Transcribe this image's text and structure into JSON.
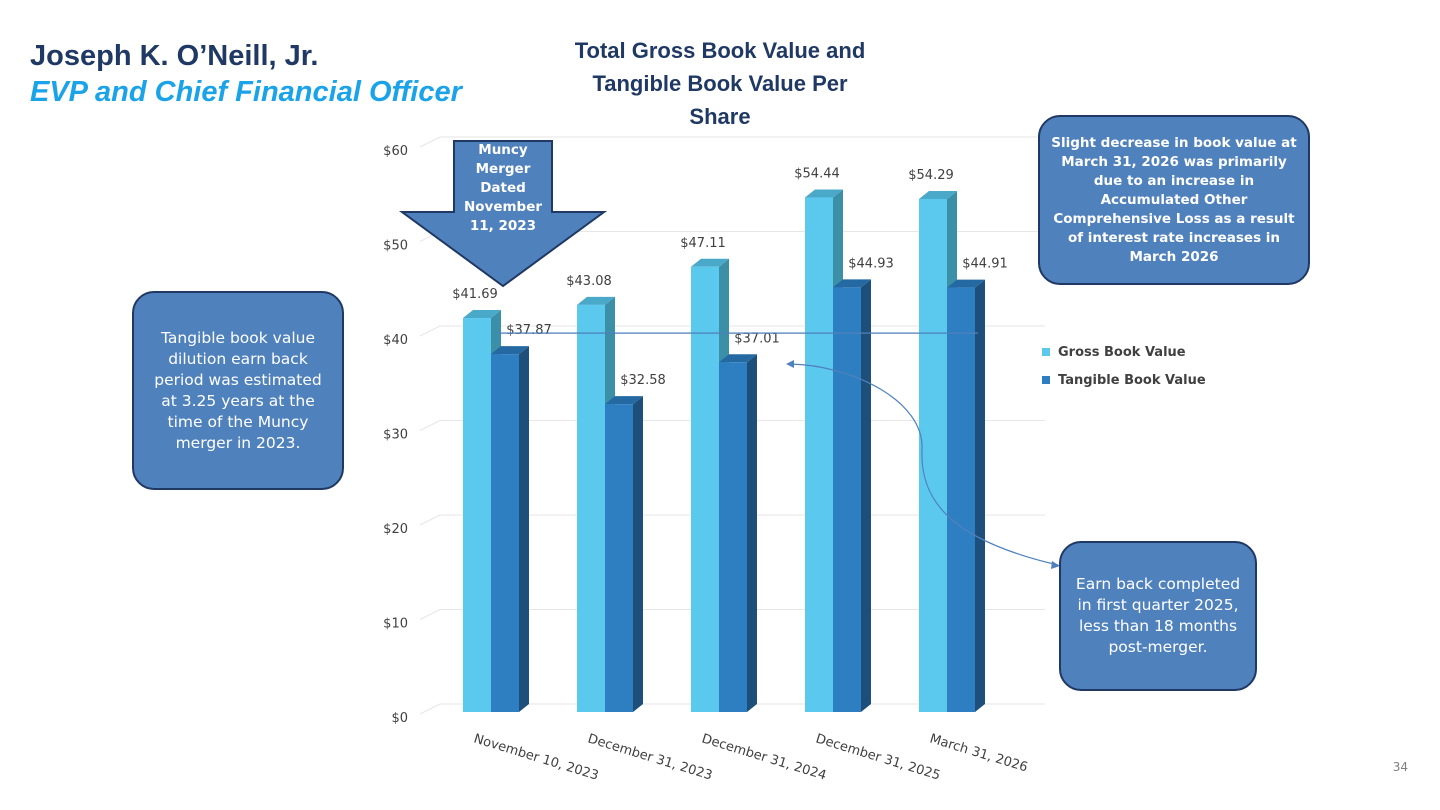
{
  "header": {
    "name": "Joseph K. O’Neill, Jr.",
    "role": "EVP and Chief Financial Officer"
  },
  "page_number": "34",
  "callouts": {
    "earn_back_period": "Tangible book value dilution earn back period was estimated at 3.25 years at the time of the Muncy merger in 2023.",
    "decrease_note": "Slight decrease in book value at March 31, 2026 was primarily due to an increase in Accumulated Other Comprehensive Loss as a result of interest rate increases in March 2026",
    "earn_back_completed": "Earn back completed in first quarter 2025, less than 18 months post-merger.",
    "merger_arrow": "Muncy Merger Dated November 11, 2023"
  },
  "colors": {
    "gross": "#5bc8ee",
    "tangible": "#2e7fc1",
    "callout": "#4f81bd",
    "title": "#1f3864",
    "accent": "#1aa3e8"
  },
  "chart_data": {
    "type": "bar",
    "title": "Total Gross Book Value and Tangible Book Value Per Share",
    "categories": [
      "November 10, 2023",
      "December 31, 2023",
      "December 31, 2024",
      "December 31, 2025",
      "March 31, 2026"
    ],
    "series": [
      {
        "name": "Gross Book Value",
        "values": [
          41.69,
          43.08,
          47.11,
          54.44,
          54.29
        ],
        "labels": [
          "$41.69",
          "$43.08",
          "$47.11",
          "$54.44",
          "$54.29"
        ]
      },
      {
        "name": "Tangible Book Value",
        "values": [
          37.87,
          32.58,
          37.01,
          44.93,
          44.91
        ],
        "labels": [
          "$37.87",
          "$32.58",
          "$37.01",
          "$44.93",
          "$44.91"
        ]
      }
    ],
    "yticks": [
      0,
      10,
      20,
      30,
      40,
      50,
      60
    ],
    "ytick_labels": [
      "$0",
      "$10",
      "$20",
      "$30",
      "$40",
      "$50",
      "$60"
    ],
    "ylim": [
      0,
      60
    ],
    "reference_line_value": 37.87,
    "legend": "right",
    "grid": true
  }
}
